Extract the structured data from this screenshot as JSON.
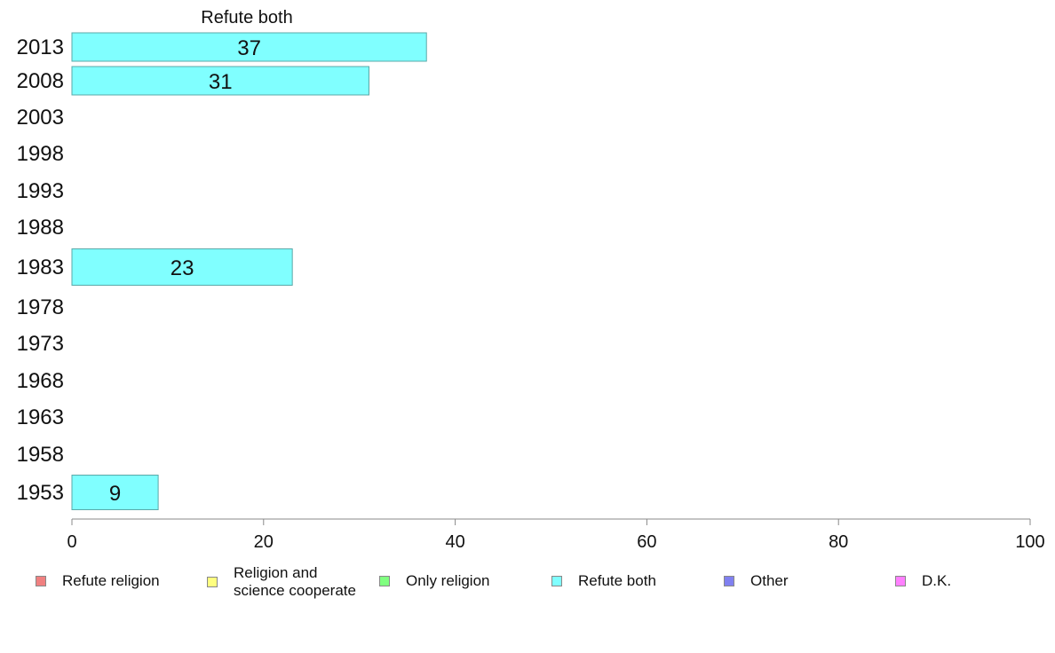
{
  "chart_data": {
    "type": "bar",
    "orientation": "horizontal",
    "title": "Refute both",
    "categories": [
      "2013",
      "2008",
      "2003",
      "1998",
      "1993",
      "1988",
      "1983",
      "1978",
      "1973",
      "1968",
      "1963",
      "1958",
      "1953"
    ],
    "series": [
      {
        "name": "Refute both",
        "color": "#80ffff",
        "values": [
          37,
          31,
          null,
          null,
          null,
          null,
          23,
          null,
          null,
          null,
          null,
          null,
          9
        ]
      }
    ],
    "xlim": [
      0,
      100
    ],
    "xticks": [
      0,
      20,
      40,
      60,
      80,
      100
    ],
    "grid": false,
    "legend_position": "bottom",
    "legend": [
      {
        "label": "Refute religion",
        "color": "#f08080"
      },
      {
        "label": "Religion and\nscience cooperate",
        "color": "#ffff80"
      },
      {
        "label": "Only religion",
        "color": "#80ff80"
      },
      {
        "label": "Refute both",
        "color": "#80ffff"
      },
      {
        "label": "Other",
        "color": "#8080f0"
      },
      {
        "label": "D.K.",
        "color": "#ff80ff"
      }
    ]
  }
}
